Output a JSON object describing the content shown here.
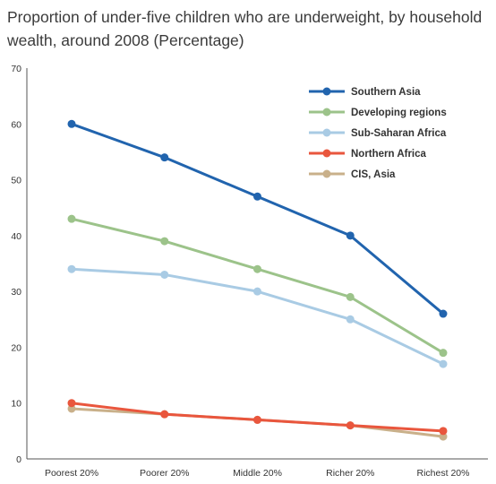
{
  "title": "Proportion of under-five children who are underweight, by household wealth, around 2008 (Percentage)",
  "chart_data": {
    "type": "line",
    "title": "Proportion of under-five children who are underweight, by household wealth, around 2008 (Percentage)",
    "xlabel": "",
    "ylabel": "",
    "categories": [
      "Poorest 20%",
      "Poorer 20%",
      "Middle 20%",
      "Richer 20%",
      "Richest 20%"
    ],
    "ylim": [
      0,
      70
    ],
    "yticks": [
      0,
      10,
      20,
      30,
      40,
      50,
      60,
      70
    ],
    "grid": false,
    "legend_position": "top-right",
    "series": [
      {
        "name": "Southern Asia",
        "color": "#2164ae",
        "values": [
          60,
          54,
          47,
          40,
          26
        ]
      },
      {
        "name": "Developing regions",
        "color": "#9cc38a",
        "values": [
          43,
          39,
          34,
          29,
          19
        ]
      },
      {
        "name": "Sub-Saharan Africa",
        "color": "#a9cbe4",
        "values": [
          34,
          33,
          30,
          25,
          17
        ]
      },
      {
        "name": "Northern Africa",
        "color": "#e9563d",
        "values": [
          10,
          8,
          7,
          6,
          5
        ]
      },
      {
        "name": "CIS, Asia",
        "color": "#c9b08a",
        "values": [
          9,
          8,
          7,
          6,
          4
        ]
      }
    ]
  }
}
